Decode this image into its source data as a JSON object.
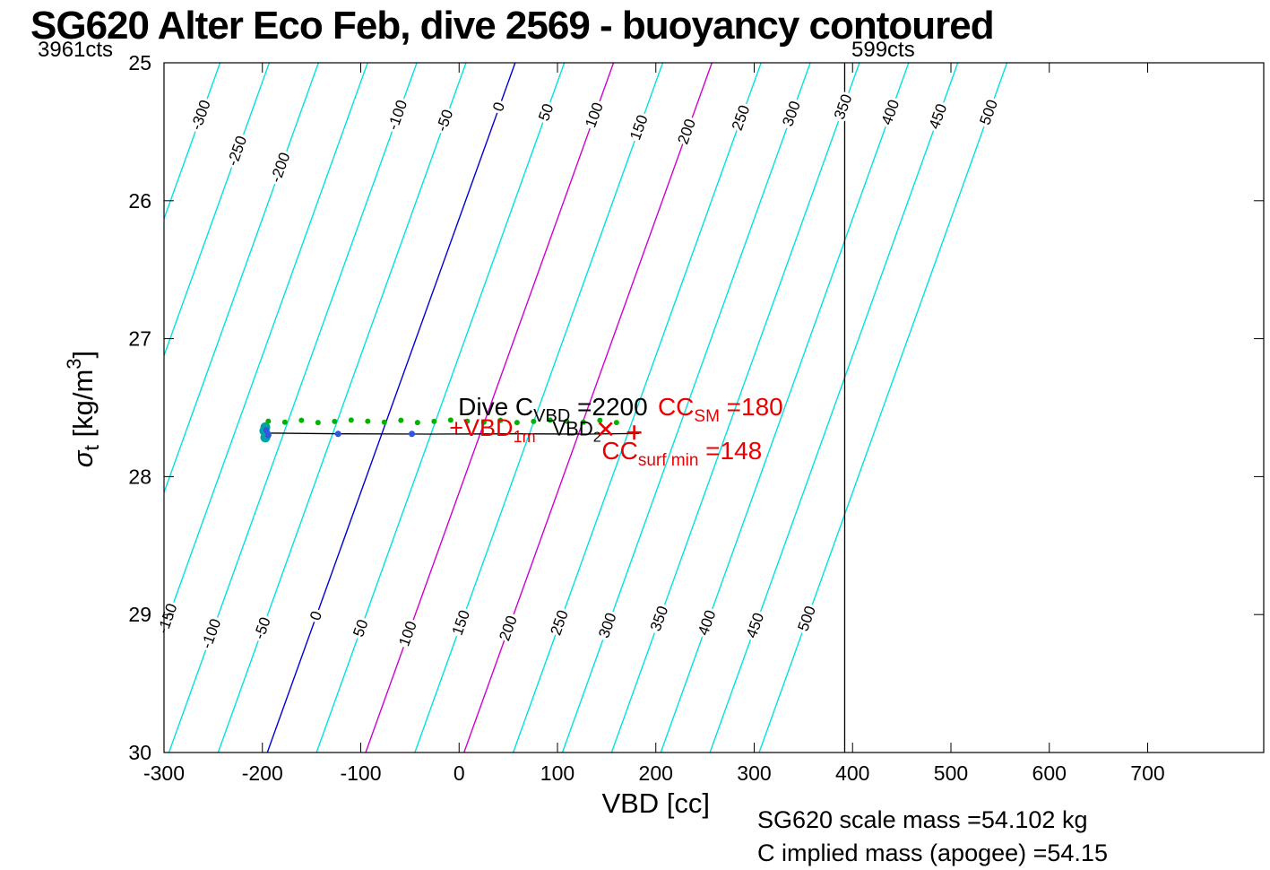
{
  "title": "SG620 Alter Eco Feb, dive 2569 - buoyancy contoured",
  "counts": {
    "left": "3961cts",
    "right": "599cts"
  },
  "footer": {
    "line1": "SG620 scale mass =54.102 kg",
    "line2": "C implied mass (apogee) =54.15"
  },
  "axes": {
    "xlabel": "VBD [cc]",
    "ylabel": {
      "sym": "σ",
      "sub": "t",
      "mid": " [kg/m",
      "sup": "3",
      "end": "]"
    }
  },
  "chart_data": {
    "type": "line",
    "subtype": "buoyancy-contour-plot",
    "xlabel": "VBD [cc]",
    "ylabel": "sigma_t [kg/m^3]",
    "xlim": [
      -300,
      818
    ],
    "ylim": [
      25,
      30
    ],
    "y_inverted": true,
    "grid": false,
    "xticks": [
      -300,
      -200,
      -100,
      0,
      100,
      200,
      300,
      400,
      500,
      600,
      700
    ],
    "yticks": [
      25,
      26,
      27,
      28,
      29,
      30
    ],
    "contours": {
      "levels": [
        -300,
        -250,
        -200,
        -150,
        -100,
        -50,
        0,
        50,
        100,
        150,
        200,
        250,
        300,
        350,
        400,
        450,
        500
      ],
      "vbd_at_sigma25_offset": 57,
      "dvbd_per_sigma": -50.4,
      "colors": {
        "default": "#00E2E2",
        "0": "#0000D8",
        "100": "#CF00CF",
        "200": "#CF00CF"
      },
      "labels": [
        {
          "level": -300,
          "sigma": 25.38
        },
        {
          "level": -250,
          "sigma": 25.64
        },
        {
          "level": -200,
          "sigma": 25.76
        },
        {
          "level": -100,
          "sigma": 25.38
        },
        {
          "level": -50,
          "sigma": 25.42
        },
        {
          "level": 0,
          "sigma": 25.32
        },
        {
          "level": 50,
          "sigma": 25.36
        },
        {
          "level": 100,
          "sigma": 25.38
        },
        {
          "level": 150,
          "sigma": 25.47
        },
        {
          "level": 200,
          "sigma": 25.5
        },
        {
          "level": 250,
          "sigma": 25.4
        },
        {
          "level": 300,
          "sigma": 25.37
        },
        {
          "level": 350,
          "sigma": 25.32
        },
        {
          "level": 400,
          "sigma": 25.36
        },
        {
          "level": 450,
          "sigma": 25.39
        },
        {
          "level": 500,
          "sigma": 25.36
        },
        {
          "level": -150,
          "sigma": 29.03
        },
        {
          "level": -100,
          "sigma": 29.14
        },
        {
          "level": -50,
          "sigma": 29.1
        },
        {
          "level": 0,
          "sigma": 29.01
        },
        {
          "level": 50,
          "sigma": 29.1
        },
        {
          "level": 100,
          "sigma": 29.14
        },
        {
          "level": 150,
          "sigma": 29.06
        },
        {
          "level": 200,
          "sigma": 29.1
        },
        {
          "level": 250,
          "sigma": 29.06
        },
        {
          "level": 300,
          "sigma": 29.08
        },
        {
          "level": 350,
          "sigma": 29.03
        },
        {
          "level": 400,
          "sigma": 29.06
        },
        {
          "level": 450,
          "sigma": 29.08
        },
        {
          "level": 500,
          "sigma": 29.03
        }
      ]
    },
    "marker_line": {
      "x": 392,
      "color": "#000000"
    },
    "series": {
      "track": {
        "color": "#000000",
        "points": [
          [
            -198,
            27.684
          ],
          [
            -120,
            27.69
          ],
          [
            -30,
            27.692
          ],
          [
            60,
            27.69
          ],
          [
            130,
            27.692
          ],
          [
            183,
            27.687
          ]
        ]
      },
      "green_dots": {
        "color": "#00B300",
        "r": 3,
        "vbd_start": -194,
        "vbd_end": 160,
        "count": 22,
        "sigma": 27.598
      },
      "blue_dots": {
        "color": "#3355DD",
        "r": 3.5,
        "points": [
          [
            -196,
            27.664
          ],
          [
            -194,
            27.7
          ],
          [
            -123,
            27.69
          ],
          [
            -48,
            27.69
          ]
        ]
      },
      "teal_dots": {
        "color": "#00A3A3",
        "r": 5.5,
        "points": [
          [
            -197,
            27.642
          ],
          [
            -198,
            27.668
          ],
          [
            -196,
            27.694
          ],
          [
            -197,
            27.716
          ]
        ]
      }
    },
    "annotations": {
      "dive_c": {
        "pre": "Dive C",
        "sub": "VBD",
        "post": " =2200",
        "x": -1,
        "sigma": 27.555
      },
      "vbd2": {
        "pre": "VBD",
        "sub": "2",
        "post": "",
        "x": 95,
        "sigma": 27.7
      },
      "vbd1m": {
        "pre": "+VBD",
        "sub": "1m",
        "post": "",
        "x": -10,
        "sigma": 27.705
      },
      "cc_sm": {
        "pre": "CC",
        "sub": "SM",
        "post": " =180",
        "x": 202,
        "sigma": 27.555
      },
      "cc_surfmin": {
        "pre": "CC",
        "sub": "surf min",
        "post": " =148",
        "x": 145,
        "sigma": 27.875
      },
      "x_marker": {
        "x": 149,
        "sigma": 27.655
      },
      "plus_marker": {
        "x": 178,
        "sigma": 27.68
      }
    }
  }
}
